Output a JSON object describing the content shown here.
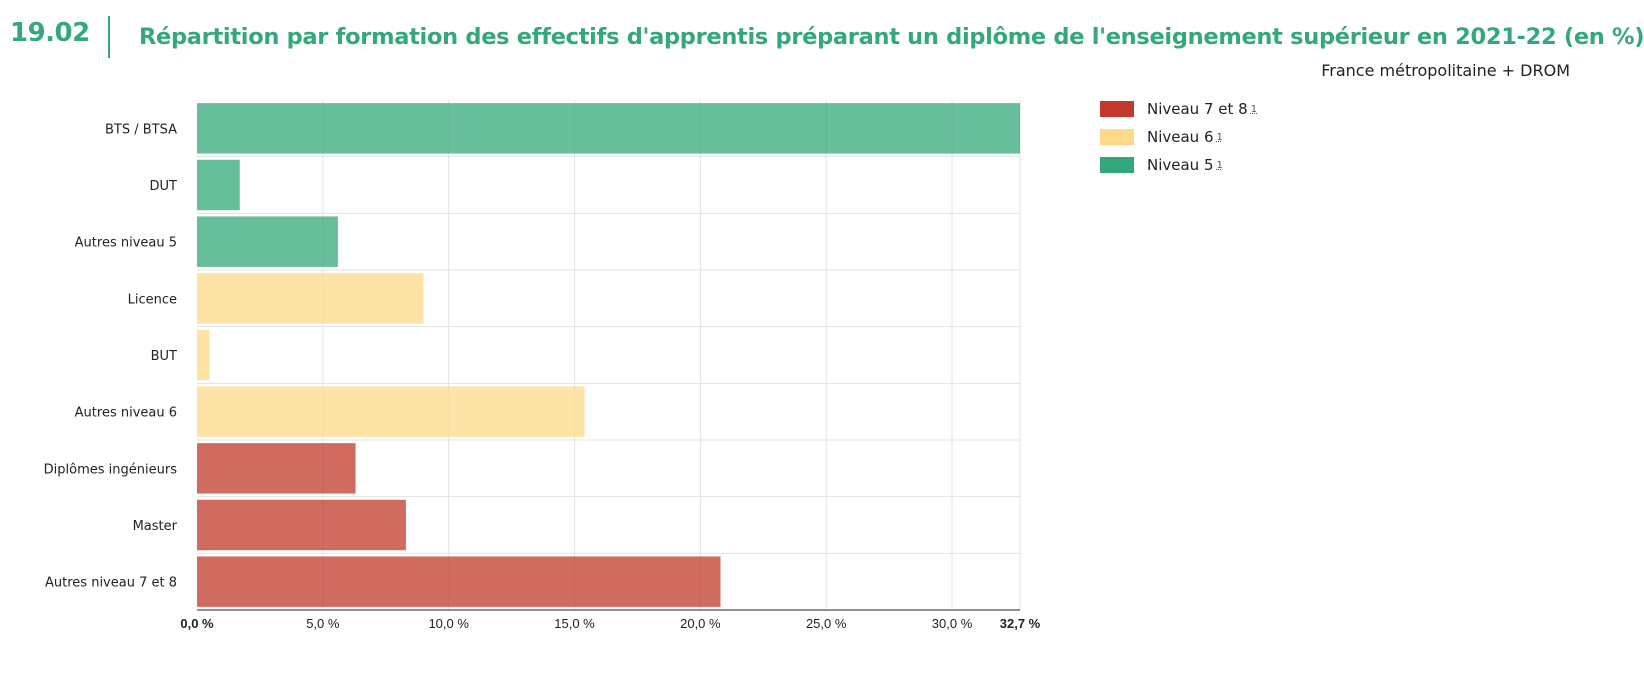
{
  "header": {
    "figure_number": "19.02",
    "title": "Répartition par formation des effectifs d'apprentis préparant un diplôme de l'enseignement supérieur en 2021-22 (en %)",
    "scope": "France métropolitaine + DROM"
  },
  "legend": [
    {
      "label": "Niveau 7 et 8",
      "note": "1",
      "color": "#c0392b"
    },
    {
      "label": "Niveau 6",
      "note": "1",
      "color": "#fdd98a"
    },
    {
      "label": "Niveau 5",
      "note": "1",
      "color": "#34a87a"
    }
  ],
  "chart_data": {
    "type": "bar",
    "orientation": "horizontal",
    "title": "Répartition par formation des effectifs d'apprentis préparant un diplôme de l'enseignement supérieur en 2021-22 (en %)",
    "categories": [
      "BTS / BTSA",
      "DUT",
      "Autres niveau 5",
      "Licence",
      "BUT",
      "Autres niveau 6",
      "Diplômes ingénieurs",
      "Master",
      "Autres niveau 7 et 8"
    ],
    "values": [
      32.7,
      1.7,
      5.6,
      9.0,
      0.5,
      15.4,
      6.3,
      8.3,
      20.8
    ],
    "groups": [
      "Niveau 5",
      "Niveau 5",
      "Niveau 5",
      "Niveau 6",
      "Niveau 6",
      "Niveau 6",
      "Niveau 7 et 8",
      "Niveau 7 et 8",
      "Niveau 7 et 8"
    ],
    "group_colors": {
      "Niveau 5": "#34a87a",
      "Niveau 6": "#fdd98a",
      "Niveau 7 et 8": "#c0392b"
    },
    "xlim": [
      0,
      32.7
    ],
    "x_ticks": [
      0,
      5,
      10,
      15,
      20,
      25,
      30,
      32.7
    ],
    "x_tick_labels": [
      "0,0 %",
      "5,0 %",
      "10,0 %",
      "15,0 %",
      "20,0 %",
      "25,0 %",
      "30,0 %",
      "32,7 %"
    ],
    "xlabel": "",
    "ylabel": "",
    "grid": true,
    "legend_position": "top-right"
  }
}
